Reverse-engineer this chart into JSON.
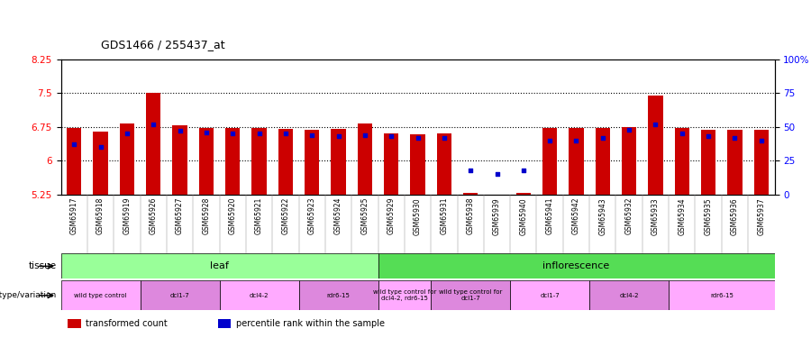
{
  "title": "GDS1466 / 255437_at",
  "ylim": [
    5.25,
    8.25
  ],
  "y2lim": [
    0,
    100
  ],
  "yticks": [
    5.25,
    6.0,
    6.75,
    7.5,
    8.25
  ],
  "ytick_labels": [
    "5.25",
    "6",
    "6.75",
    "7.5",
    "8.25"
  ],
  "y2ticks": [
    0,
    25,
    50,
    75,
    100
  ],
  "y2tick_labels": [
    "0",
    "25",
    "50",
    "75",
    "100%"
  ],
  "samples": [
    "GSM65917",
    "GSM65918",
    "GSM65919",
    "GSM65926",
    "GSM65927",
    "GSM65928",
    "GSM65920",
    "GSM65921",
    "GSM65922",
    "GSM65923",
    "GSM65924",
    "GSM65925",
    "GSM65929",
    "GSM65930",
    "GSM65931",
    "GSM65938",
    "GSM65939",
    "GSM65940",
    "GSM65941",
    "GSM65942",
    "GSM65943",
    "GSM65932",
    "GSM65933",
    "GSM65934",
    "GSM65935",
    "GSM65936",
    "GSM65937"
  ],
  "transformed_counts": [
    6.72,
    6.65,
    6.82,
    7.5,
    6.78,
    6.72,
    6.72,
    6.72,
    6.7,
    6.68,
    6.7,
    6.82,
    6.6,
    6.58,
    6.6,
    5.28,
    5.22,
    5.28,
    6.72,
    6.72,
    6.72,
    6.75,
    7.45,
    6.72,
    6.68,
    6.68,
    6.68
  ],
  "percentile_ranks": [
    37,
    35,
    45,
    52,
    47,
    46,
    45,
    45,
    45,
    44,
    43,
    44,
    43,
    42,
    42,
    18,
    15,
    18,
    40,
    40,
    42,
    48,
    52,
    45,
    43,
    42,
    40
  ],
  "base": 5.25,
  "bar_color": "#cc0000",
  "dot_color": "#0000cc",
  "xticklabel_bg": "#d0d0d0",
  "tissue_groups": [
    {
      "label": "leaf",
      "start": 0,
      "end": 11,
      "color": "#99ff99"
    },
    {
      "label": "inflorescence",
      "start": 12,
      "end": 26,
      "color": "#55dd55"
    }
  ],
  "genotype_groups": [
    {
      "label": "wild type control",
      "start": 0,
      "end": 2,
      "color": "#ffaaff"
    },
    {
      "label": "dcl1-7",
      "start": 3,
      "end": 5,
      "color": "#dd88dd"
    },
    {
      "label": "dcl4-2",
      "start": 6,
      "end": 8,
      "color": "#ffaaff"
    },
    {
      "label": "rdr6-15",
      "start": 9,
      "end": 11,
      "color": "#dd88dd"
    },
    {
      "label": "wild type control for\ndcl4-2, rdr6-15",
      "start": 12,
      "end": 13,
      "color": "#ffaaff"
    },
    {
      "label": "wild type control for\ndcl1-7",
      "start": 14,
      "end": 16,
      "color": "#dd88dd"
    },
    {
      "label": "dcl1-7",
      "start": 17,
      "end": 19,
      "color": "#ffaaff"
    },
    {
      "label": "dcl4-2",
      "start": 20,
      "end": 22,
      "color": "#dd88dd"
    },
    {
      "label": "rdr6-15",
      "start": 23,
      "end": 26,
      "color": "#ffaaff"
    }
  ],
  "legend_items": [
    {
      "label": "transformed count",
      "color": "#cc0000"
    },
    {
      "label": "percentile rank within the sample",
      "color": "#0000cc"
    }
  ],
  "label_tissue": "tissue",
  "label_genotype": "genotype/variation"
}
